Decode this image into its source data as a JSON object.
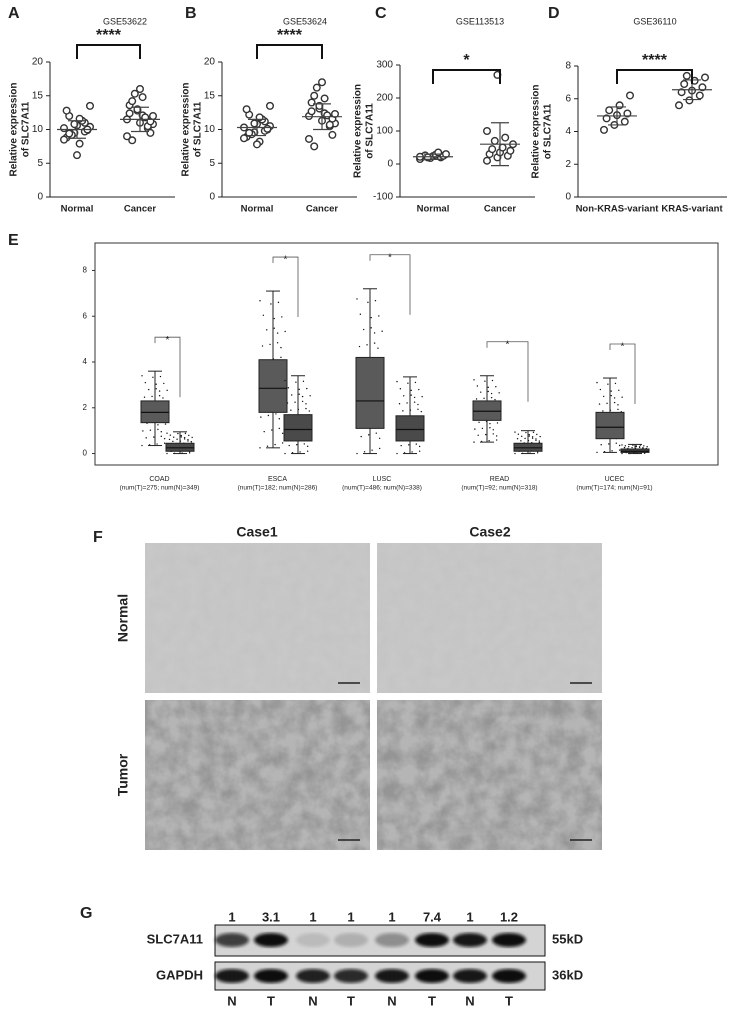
{
  "chart_data": [
    {
      "type": "dot",
      "label": "A",
      "title": "GSE53622",
      "ylabel": [
        "Relative expression",
        "of SLC7A11"
      ],
      "categories": [
        "Normal",
        "Cancer"
      ],
      "ylim": [
        0,
        20
      ],
      "yticks": [
        0,
        5,
        10,
        15,
        20
      ],
      "significance": "****",
      "points": [
        [
          10.2,
          9.5,
          11,
          8.8,
          10.6,
          9.9,
          12,
          7.9,
          10.4,
          9.2,
          11.3,
          8.5,
          10.8,
          9.7,
          12.8,
          6.2,
          10,
          9.4,
          11.6,
          13.5
        ],
        [
          11.5,
          12.8,
          10.2,
          13.6,
          11,
          9.5,
          14.2,
          12.1,
          10.8,
          15.3,
          11.8,
          9,
          13,
          10.5,
          12.4,
          16,
          11.2,
          8.4,
          14.8,
          12
        ]
      ],
      "mean": [
        10,
        11.5
      ],
      "sd": [
        1.3,
        1.8
      ]
    },
    {
      "type": "dot",
      "label": "B",
      "title": "GSE53624",
      "ylabel": [
        "Relative expression",
        "of SLC7A11"
      ],
      "categories": [
        "Normal",
        "Cancer"
      ],
      "ylim": [
        0,
        20
      ],
      "yticks": [
        0,
        5,
        10,
        15,
        20
      ],
      "significance": "****",
      "points": [
        [
          10.3,
          9.6,
          11.2,
          8.9,
          10.8,
          10,
          12.2,
          8.2,
          10.5,
          9.3,
          11.5,
          8.7,
          10.9,
          9.8,
          13,
          7.8,
          10.1,
          9.5,
          11.8,
          13.5
        ],
        [
          12,
          13.1,
          10.5,
          14,
          11.3,
          9.2,
          15,
          12.4,
          10.9,
          16.2,
          12.1,
          8.6,
          13.5,
          10.7,
          12.7,
          17,
          11.6,
          7.5,
          14.6,
          12.3
        ]
      ],
      "mean": [
        10.3,
        11.9
      ],
      "sd": [
        1.2,
        1.9
      ]
    },
    {
      "type": "dot",
      "label": "C",
      "title": "GSE113513",
      "ylabel": [
        "Relative expression",
        "of SLC7A11"
      ],
      "categories": [
        "Normal",
        "Cancer"
      ],
      "ylim": [
        -100,
        300
      ],
      "yticks": [
        -100,
        0,
        100,
        200,
        300
      ],
      "significance": "*",
      "points": [
        [
          15,
          18,
          20,
          22,
          24,
          25,
          26,
          28,
          30,
          20,
          35,
          22
        ],
        [
          10,
          20,
          25,
          30,
          35,
          40,
          45,
          50,
          60,
          70,
          80,
          100,
          270
        ]
      ],
      "mean": [
        22,
        60
      ],
      "sd": [
        8,
        65
      ]
    },
    {
      "type": "dot",
      "label": "D",
      "title": "GSE36110",
      "ylabel": [
        "Relative expression",
        "of SLC7A11"
      ],
      "categories": [
        "Non-KRAS-variant",
        "KRAS-variant"
      ],
      "ylim": [
        0,
        8
      ],
      "yticks": [
        0,
        2,
        4,
        6,
        8
      ],
      "significance": "****",
      "points": [
        [
          4.1,
          4.4,
          4.6,
          4.8,
          5,
          5.1,
          5.3,
          5.6,
          6.2
        ],
        [
          5.6,
          5.9,
          6.2,
          6.4,
          6.5,
          6.7,
          6.9,
          7.1,
          7.3,
          7.4
        ]
      ],
      "mean": [
        4.95,
        6.55
      ],
      "sd": [
        0.55,
        0.6
      ]
    },
    {
      "type": "box",
      "label": "E",
      "ylim": [
        -0.5,
        9.2
      ],
      "yticks": [
        0,
        2,
        4,
        6,
        8
      ],
      "categories": [
        "COAD",
        "ESCA",
        "LUSC",
        "READ",
        "UCEC"
      ],
      "category_notes": [
        "(num(T)=275; num(N)=349)",
        "(num(T)=182; num(N)=286)",
        "(num(T)=486; num(N)=338)",
        "(num(T)=92; num(N)=318)",
        "(num(T)=174; num(N)=91)"
      ],
      "significance": [
        "*",
        "*",
        "*",
        "*",
        "*"
      ],
      "series": [
        {
          "color": "#5a5a5a",
          "low": [
            0.35,
            0.25,
            0,
            0.5,
            0.05
          ],
          "q1": [
            1.35,
            1.8,
            1.1,
            1.45,
            0.65
          ],
          "median": [
            1.8,
            2.85,
            2.3,
            1.85,
            1.15
          ],
          "q3": [
            2.3,
            4.1,
            4.2,
            2.3,
            1.8
          ],
          "high": [
            3.6,
            7.1,
            7.2,
            3.4,
            3.3
          ]
        },
        {
          "color": "#4a4a4a",
          "low": [
            0,
            0,
            0,
            0,
            0
          ],
          "q1": [
            0.1,
            0.55,
            0.55,
            0.1,
            0.05
          ],
          "median": [
            0.25,
            1.05,
            1.05,
            0.25,
            0.1
          ],
          "q3": [
            0.45,
            1.7,
            1.65,
            0.45,
            0.2
          ],
          "high": [
            0.95,
            3.4,
            3.35,
            1.0,
            0.4
          ]
        }
      ]
    }
  ],
  "panel_f": {
    "label": "F",
    "columns": [
      "Case1",
      "Case2"
    ],
    "rows": [
      "Normal",
      "Tumor"
    ]
  },
  "panel_g": {
    "label": "G",
    "ratios": [
      1,
      3.1,
      1,
      1,
      1,
      7.4,
      1,
      1.2
    ],
    "blots": [
      {
        "name": "SLC7A11",
        "size": "55kD"
      },
      {
        "name": "GAPDH",
        "size": "36kD"
      }
    ],
    "lanes": [
      "N",
      "T",
      "N",
      "T",
      "N",
      "T",
      "N",
      "T"
    ]
  }
}
